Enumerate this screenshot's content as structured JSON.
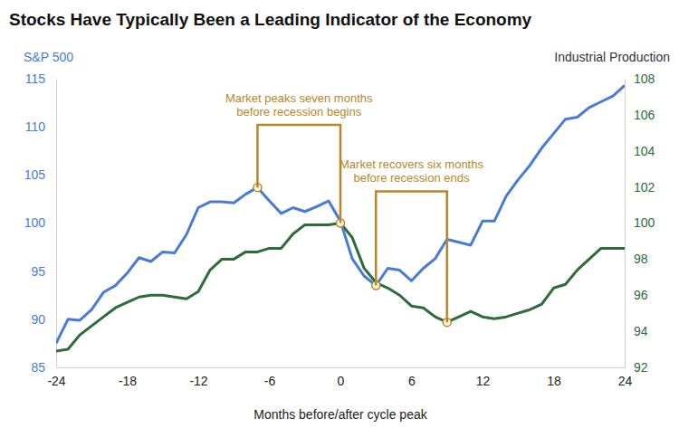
{
  "chart_data": {
    "type": "line",
    "title": "Stocks Have Typically Been a Leading Indicator of the Economy",
    "xlabel": "Months before/after cycle peak",
    "ylabel": "S&P 500",
    "y2label": "Industrial Production",
    "x": [
      -24,
      -23,
      -22,
      -21,
      -20,
      -19,
      -18,
      -17,
      -16,
      -15,
      -14,
      -13,
      -12,
      -11,
      -10,
      -9,
      -8,
      -7,
      -6,
      -5,
      -4,
      -3,
      -2,
      -1,
      0,
      1,
      2,
      3,
      4,
      5,
      6,
      7,
      8,
      9,
      10,
      11,
      12,
      13,
      14,
      15,
      16,
      17,
      18,
      19,
      20,
      21,
      22,
      23,
      24
    ],
    "xlim": [
      -24,
      24
    ],
    "xticks": [
      -24,
      -18,
      -12,
      -6,
      0,
      6,
      12,
      18,
      24
    ],
    "ylim": [
      85,
      115
    ],
    "yticks": [
      85,
      90,
      95,
      100,
      105,
      110,
      115
    ],
    "y2lim": [
      92,
      108
    ],
    "y2ticks": [
      92,
      94,
      96,
      98,
      100,
      102,
      104,
      106,
      108
    ],
    "grid": false,
    "series": [
      {
        "name": "S&P 500",
        "color": "#4a7bd4",
        "values": [
          87.5,
          90,
          89.9,
          91,
          92.8,
          93.5,
          94.8,
          96.4,
          96,
          97,
          96.9,
          98.8,
          101.6,
          102.2,
          102.2,
          102.1,
          103,
          103.7,
          102.3,
          101,
          101.6,
          101.2,
          101.7,
          102.3,
          100.2,
          96.3,
          94.5,
          93.5,
          95.3,
          95.1,
          94,
          95.3,
          96.3,
          98.3,
          98,
          97.7,
          100.2,
          100.2,
          102.8,
          104.5,
          106,
          107.8,
          109.3,
          110.8,
          111,
          112,
          112.6,
          113.2,
          114.3
        ]
      },
      {
        "name": "Industrial Production",
        "color": "#2e6b3a",
        "axis": "y2",
        "values": [
          92.9,
          93,
          93.8,
          94.3,
          94.8,
          95.3,
          95.6,
          95.9,
          96,
          96,
          95.9,
          95.8,
          96.2,
          97.4,
          98,
          98,
          98.4,
          98.4,
          98.6,
          98.6,
          99.4,
          99.9,
          99.9,
          99.9,
          100,
          99.2,
          97.5,
          96.7,
          96.4,
          96,
          95.4,
          95.3,
          94.8,
          94.5,
          94.8,
          95.1,
          94.8,
          94.7,
          94.8,
          95,
          95.2,
          95.5,
          96.4,
          96.6,
          97.4,
          98,
          98.6,
          98.6,
          98.6
        ]
      }
    ],
    "annotations": [
      {
        "text": [
          "Market peaks seven months",
          "before recession begins"
        ],
        "x_start": -7,
        "start_series": "S&P 500",
        "x_end": 0,
        "end_series": "Industrial Production",
        "y": 110.2,
        "color": "#b8862a"
      },
      {
        "text": [
          "Market recovers six months",
          "before recession ends"
        ],
        "x_start": 3,
        "start_series": "S&P 500",
        "x_end": 9,
        "end_series": "Industrial Production",
        "y": 103.3,
        "color": "#b8862a"
      }
    ]
  }
}
